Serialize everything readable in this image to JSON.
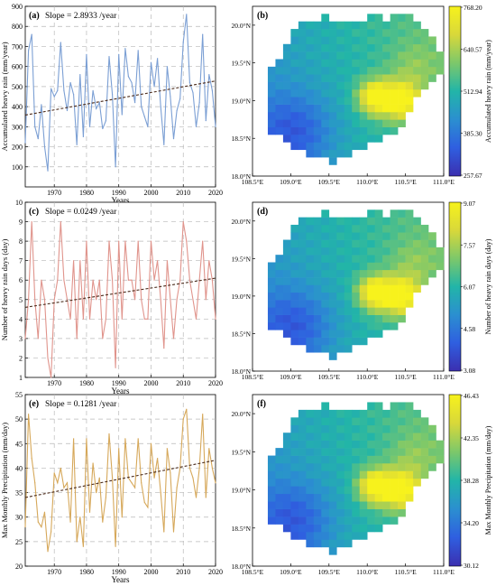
{
  "chart_data": [
    {
      "type": "line",
      "panel_label": "(a)",
      "annotation": "Slope = 2.8933 /year",
      "xlabel": "Years",
      "ylabel": "Accumulated heavy rain (mm/year)",
      "xlim": [
        1961,
        2020
      ],
      "ylim": [
        0,
        900
      ],
      "xticks": [
        "1970",
        "1980",
        "1990",
        "2000",
        "2010",
        "2020"
      ],
      "yticks": [
        "100",
        "200",
        "300",
        "400",
        "500",
        "600",
        "700",
        "800",
        "900"
      ],
      "line_color": "#7b9fd4",
      "trend": {
        "slope": 2.8933,
        "start": 358,
        "end": 528,
        "color": "#4a2a1a"
      },
      "x": [
        1961,
        1962,
        1963,
        1964,
        1965,
        1966,
        1967,
        1968,
        1969,
        1970,
        1971,
        1972,
        1973,
        1974,
        1975,
        1976,
        1977,
        1978,
        1979,
        1980,
        1981,
        1982,
        1983,
        1984,
        1985,
        1986,
        1987,
        1988,
        1989,
        1990,
        1991,
        1992,
        1993,
        1994,
        1995,
        1996,
        1997,
        1998,
        1999,
        2000,
        2001,
        2002,
        2003,
        2004,
        2005,
        2006,
        2007,
        2008,
        2009,
        2010,
        2011,
        2012,
        2013,
        2014,
        2015,
        2016,
        2017,
        2018,
        2019,
        2020
      ],
      "series": [
        {
          "values": [
            220,
            680,
            760,
            300,
            240,
            410,
            200,
            80,
            490,
            450,
            480,
            720,
            480,
            380,
            520,
            460,
            210,
            560,
            250,
            660,
            300,
            480,
            390,
            420,
            290,
            330,
            650,
            460,
            100,
            660,
            360,
            690,
            550,
            520,
            420,
            680,
            400,
            350,
            300,
            620,
            500,
            640,
            400,
            210,
            600,
            450,
            240,
            380,
            440,
            720,
            860,
            520,
            470,
            300,
            420,
            760,
            330,
            560,
            480,
            300
          ]
        }
      ]
    },
    {
      "type": "heatmap",
      "panel_label": "(b)",
      "colorbar_label": "Accumulated heavy rain (mm/year)",
      "colorbar_ticks": [
        "768.20",
        "640.57",
        "512.94",
        "385.30",
        "257.67"
      ],
      "vmin": 257.67,
      "vmax": 768.2
    },
    {
      "type": "line",
      "panel_label": "(c)",
      "annotation": "Slope = 0.0249 /year",
      "xlabel": "Years",
      "ylabel": "Number of heavy rain days (day)",
      "xlim": [
        1961,
        2020
      ],
      "ylim": [
        1,
        10
      ],
      "xticks": [
        "1970",
        "1980",
        "1990",
        "2000",
        "2010",
        "2020"
      ],
      "yticks": [
        "1",
        "2",
        "3",
        "4",
        "5",
        "6",
        "7",
        "8",
        "9",
        "10"
      ],
      "line_color": "#e0948c",
      "trend": {
        "slope": 0.0249,
        "start": 4.6,
        "end": 6.1,
        "color": "#4a2a1a"
      },
      "x": [
        1961,
        1962,
        1963,
        1964,
        1965,
        1966,
        1967,
        1968,
        1969,
        1970,
        1971,
        1972,
        1973,
        1974,
        1975,
        1976,
        1977,
        1978,
        1979,
        1980,
        1981,
        1982,
        1983,
        1984,
        1985,
        1986,
        1987,
        1988,
        1989,
        1990,
        1991,
        1992,
        1993,
        1994,
        1995,
        1996,
        1997,
        1998,
        1999,
        2000,
        2001,
        2002,
        2003,
        2004,
        2005,
        2006,
        2007,
        2008,
        2009,
        2010,
        2011,
        2012,
        2013,
        2014,
        2015,
        2016,
        2017,
        2018,
        2019,
        2020
      ],
      "series": [
        {
          "values": [
            3,
            5,
            9,
            5,
            3,
            6,
            5,
            2,
            1,
            5,
            6,
            9,
            6,
            5,
            4,
            7,
            3,
            7,
            4,
            8,
            4,
            6,
            5,
            6,
            3,
            4,
            8,
            6,
            1.5,
            8,
            4,
            8,
            6,
            6,
            5,
            8,
            5,
            4,
            4,
            8,
            6,
            7,
            5,
            2.5,
            7,
            5,
            3,
            5,
            6,
            9,
            8,
            6,
            5,
            4,
            6,
            8,
            5,
            7,
            6,
            4
          ]
        }
      ]
    },
    {
      "type": "heatmap",
      "panel_label": "(d)",
      "colorbar_label": "Number of heavy rain days (day)",
      "colorbar_ticks": [
        "9.07",
        "7.57",
        "6.07",
        "4.58",
        "3.08"
      ],
      "vmin": 3.08,
      "vmax": 9.07
    },
    {
      "type": "line",
      "panel_label": "(e)",
      "annotation": "Slope = 0.1281 /year",
      "xlabel": "Years",
      "ylabel": "Max Monthly Precipitation (mm/day)",
      "xlim": [
        1961,
        2020
      ],
      "ylim": [
        20,
        55
      ],
      "xticks": [
        "1970",
        "1980",
        "1990",
        "2000",
        "2010",
        "2020"
      ],
      "yticks": [
        "20",
        "25",
        "30",
        "35",
        "40",
        "45",
        "50",
        "55"
      ],
      "line_color": "#d6a85a",
      "trend": {
        "slope": 0.1281,
        "start": 34,
        "end": 41.6,
        "color": "#4a2a1a"
      },
      "x": [
        1961,
        1962,
        1963,
        1964,
        1965,
        1966,
        1967,
        1968,
        1969,
        1970,
        1971,
        1972,
        1973,
        1974,
        1975,
        1976,
        1977,
        1978,
        1979,
        1980,
        1981,
        1982,
        1983,
        1984,
        1985,
        1986,
        1987,
        1988,
        1989,
        1990,
        1991,
        1992,
        1993,
        1994,
        1995,
        1996,
        1997,
        1998,
        1999,
        2000,
        2001,
        2002,
        2003,
        2004,
        2005,
        2006,
        2007,
        2008,
        2009,
        2010,
        2011,
        2012,
        2013,
        2014,
        2015,
        2016,
        2017,
        2018,
        2019,
        2020
      ],
      "series": [
        {
          "values": [
            28,
            51,
            42,
            37,
            29,
            28,
            31,
            23,
            27,
            39,
            37,
            40,
            36,
            37,
            29,
            46,
            25,
            30,
            24,
            46,
            31,
            41,
            35,
            38,
            29,
            34,
            47,
            38,
            24,
            44,
            30,
            46,
            38,
            37,
            36,
            46,
            37,
            33,
            32,
            45,
            38,
            42,
            35,
            27,
            44,
            39,
            27,
            36,
            40,
            50,
            52,
            40,
            38,
            34,
            40,
            51,
            34,
            44,
            40,
            37
          ]
        }
      ]
    },
    {
      "type": "heatmap",
      "panel_label": "(f)",
      "colorbar_label": "Max Monthly Precipitation (mm/day)",
      "colorbar_ticks": [
        "46.43",
        "42.35",
        "38.28",
        "34.20",
        "30.12"
      ],
      "vmin": 30.12,
      "vmax": 46.43
    }
  ],
  "map_axes": {
    "xticks": [
      "108.5°E",
      "109.0°E",
      "109.5°E",
      "110.0°E",
      "110.5°E",
      "111.0°E"
    ],
    "yticks": [
      "20.0°N",
      "19.5°N",
      "19.0°N",
      "18.5°N",
      "18.0°N"
    ]
  },
  "colors": {
    "colormap": [
      "#3b2fb0",
      "#2f5fe0",
      "#2b8fd0",
      "#22b5a8",
      "#7dc86a",
      "#d8d83a",
      "#f7f21c"
    ]
  }
}
